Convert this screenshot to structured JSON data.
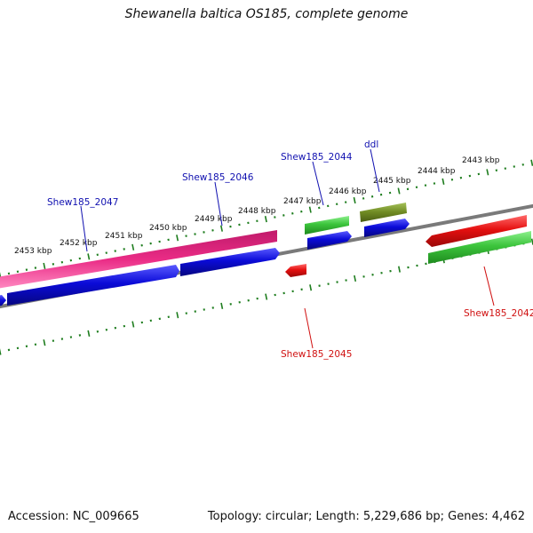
{
  "title": "Shewanella baltica OS185, complete genome",
  "footer": {
    "accession": "Accession: NC_009665",
    "topology": "Topology: circular; Length: 5,229,686 bp; Genes: 4,462"
  },
  "colors": {
    "backbone": "#7f7f7f",
    "ticks": "#1e7d1e",
    "label_fwd": "#1010b0",
    "label_rev": "#d01010",
    "gene_blue": "#0b0bd8",
    "gene_green": "#3cc43c",
    "gene_red": "#e51010",
    "gene_pink": "#ea2c86",
    "gene_olive": "#6f8a23"
  },
  "tick_labels": [
    "2443 kbp",
    "2444 kbp",
    "2445 kbp",
    "2446 kbp",
    "2447 kbp",
    "2448 kbp",
    "2449 kbp",
    "2450 kbp",
    "2451 kbp",
    "2452 kbp",
    "2453 kbp"
  ],
  "gene_labels": {
    "ddl": "ddl",
    "g2044": "Shew185_2044",
    "g2046": "Shew185_2046",
    "g2047": "Shew185_2047",
    "g2045": "Shew185_2045",
    "g2042": "Shew185_2042"
  }
}
